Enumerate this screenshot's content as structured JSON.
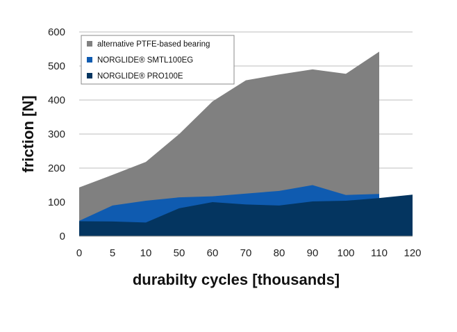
{
  "chart_data": {
    "type": "area",
    "title": "",
    "xlabel": "durabilty cycles [thousands]",
    "ylabel": "friction [N]",
    "ylim": [
      0,
      600
    ],
    "yticks": [
      0,
      100,
      200,
      300,
      400,
      500,
      600
    ],
    "ytick_labels": [
      "0",
      "100",
      "200",
      "300",
      "400",
      "500",
      "600"
    ],
    "categories": [
      "0",
      "5",
      "10",
      "50",
      "60",
      "70",
      "80",
      "90",
      "100",
      "110",
      "120"
    ],
    "grid": true,
    "legend_position": "top-left",
    "series": [
      {
        "name": "alternative PTFE-based bearing",
        "color": "#808080",
        "values": [
          143,
          180,
          218,
          300,
          396,
          458,
          475,
          490,
          477,
          542,
          null
        ]
      },
      {
        "name": "NORGLIDE® SMTL100EG",
        "color": "#0f5bb0",
        "values": [
          45,
          90,
          104,
          114,
          117,
          125,
          133,
          150,
          121,
          124,
          null
        ]
      },
      {
        "name": "NORGLIDE® PRO100E",
        "color": "#043560",
        "values": [
          44,
          43,
          40,
          82,
          100,
          93,
          90,
          102,
          104,
          112,
          122
        ]
      }
    ]
  }
}
